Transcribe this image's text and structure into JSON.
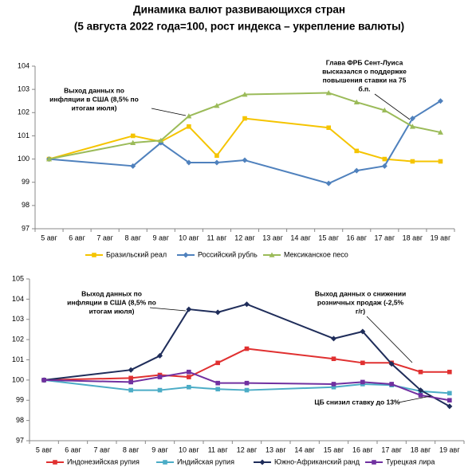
{
  "title": "Динамика валют развивающихся стран",
  "subtitle": "(5 августа 2022 года=100, рост индекса – укрепление валюты)",
  "chart_data": [
    {
      "type": "line",
      "connect_gaps": true,
      "categories": [
        "5 авг",
        "6 авг",
        "7 авг",
        "8 авг",
        "9 авг",
        "10 авг",
        "11 авг",
        "12 авг",
        "13 авг",
        "14 авг",
        "15 авг",
        "16 авг",
        "17 авг",
        "18 авг",
        "19 авг"
      ],
      "ylim": [
        97,
        104
      ],
      "yticks": [
        97,
        98,
        99,
        100,
        101,
        102,
        103,
        104
      ],
      "series": [
        {
          "name": "Бразильский реал",
          "color": "#f5c400",
          "marker": "square",
          "values": [
            100,
            null,
            null,
            101.0,
            100.75,
            101.4,
            100.15,
            101.75,
            null,
            null,
            101.35,
            100.35,
            100.0,
            99.9,
            99.9
          ]
        },
        {
          "name": "Российский рубль",
          "color": "#4f81bd",
          "marker": "diamond",
          "values": [
            100,
            null,
            null,
            99.7,
            100.7,
            99.85,
            99.85,
            99.95,
            null,
            null,
            98.95,
            99.5,
            99.7,
            101.75,
            102.5
          ]
        },
        {
          "name": "Мексиканское песо",
          "color": "#9bbb59",
          "marker": "triangle",
          "values": [
            100,
            null,
            null,
            100.7,
            100.8,
            101.85,
            102.3,
            102.78,
            null,
            null,
            102.85,
            102.45,
            102.1,
            101.4,
            101.15
          ]
        }
      ],
      "annotations": [
        {
          "lines": [
            "Выход данных по",
            "инфляции в США (8,5% по",
            "итогам июля)"
          ]
        },
        {
          "lines": [
            "Глава ФРБ Сент-Луиса",
            "высказался о поддержке",
            "повышения ставки на 75",
            "б.п."
          ]
        }
      ]
    },
    {
      "type": "line",
      "connect_gaps": true,
      "categories": [
        "5 авг",
        "6 авг",
        "7 авг",
        "8 авг",
        "9 авг",
        "10 авг",
        "11 авг",
        "12 авг",
        "13 авг",
        "14 авг",
        "15 авг",
        "16 авг",
        "17 авг",
        "18 авг",
        "19 авг"
      ],
      "ylim": [
        97,
        105
      ],
      "yticks": [
        97,
        98,
        99,
        100,
        101,
        102,
        103,
        104,
        105
      ],
      "series": [
        {
          "name": "Индонезийская рупия",
          "color": "#e03030",
          "marker": "square",
          "values": [
            100,
            null,
            null,
            100.1,
            100.25,
            100.15,
            100.85,
            101.55,
            null,
            null,
            101.05,
            100.85,
            100.85,
            100.4,
            100.4
          ]
        },
        {
          "name": "Индийская рупия",
          "color": "#4bacc6",
          "marker": "square",
          "values": [
            100,
            null,
            null,
            99.5,
            99.5,
            99.65,
            99.55,
            99.5,
            null,
            null,
            99.65,
            99.8,
            99.75,
            99.45,
            99.35
          ]
        },
        {
          "name": "Южно-Африканский ранд",
          "color": "#1f2d5a",
          "marker": "diamond",
          "values": [
            100,
            null,
            null,
            100.5,
            101.2,
            103.5,
            103.35,
            103.75,
            null,
            null,
            102.05,
            102.4,
            100.8,
            99.5,
            98.7
          ]
        },
        {
          "name": "Турецкая лира",
          "color": "#7030a0",
          "marker": "square",
          "values": [
            100,
            null,
            null,
            99.9,
            100.15,
            100.4,
            99.85,
            99.85,
            null,
            null,
            99.8,
            99.9,
            99.8,
            99.25,
            99.0
          ]
        }
      ],
      "annotations": [
        {
          "lines": [
            "Выход данных по",
            "инфляции в США (8,5% по",
            "итогам июля)"
          ]
        },
        {
          "lines": [
            "Выход данных о снижении",
            "розничных продаж (-2,5%",
            "г/г)"
          ]
        },
        {
          "lines": [
            "ЦБ снизил ставку до 13%"
          ]
        }
      ]
    }
  ]
}
